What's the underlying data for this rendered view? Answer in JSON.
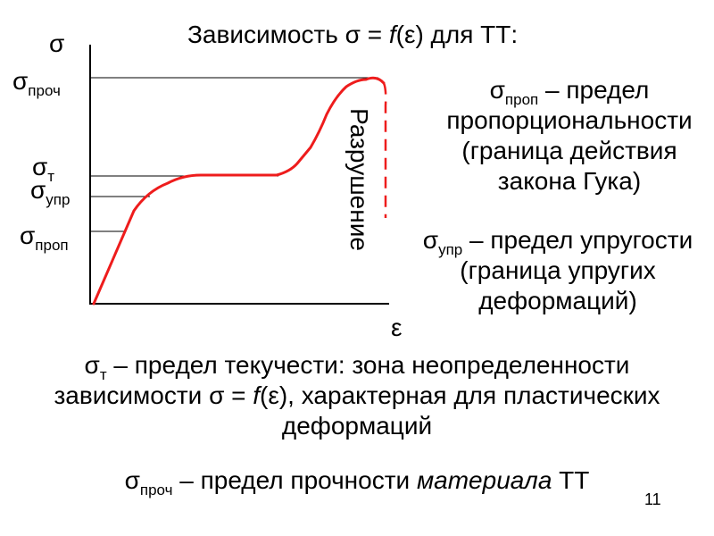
{
  "slide": {
    "title": {
      "pre": "Зависимость σ = ",
      "f": "f",
      "post": "(ε) для ТТ:"
    },
    "page_number": "11"
  },
  "diagram": {
    "y_axis": "σ",
    "x_axis": "ε",
    "levels": {
      "proch": {
        "sym": "σ",
        "sub": "проч"
      },
      "t": {
        "sym": "σ",
        "sub": "т"
      },
      "upr": {
        "sym": "σ",
        "sub": "упр"
      },
      "prop": {
        "sym": "σ",
        "sub": "проп"
      }
    },
    "fracture_label": "Разрушение",
    "colors": {
      "curve": "#ee1c1c",
      "fracture": "#ee1c1c",
      "lines": "#000000"
    }
  },
  "definitions": {
    "prop": {
      "sym": "σ",
      "sub": "проп",
      "rest": " – предел",
      "lines": [
        "пропорциональности",
        "(граница действия",
        "закона Гука)"
      ]
    },
    "upr": {
      "sym": "σ",
      "sub": "упр",
      "rest": " – предел упругости",
      "lines": [
        "(граница упругих",
        "деформаций)"
      ]
    },
    "t": {
      "sym": "σ",
      "sub": "т",
      "rest": " – предел текучести: зона неопределенности",
      "line2_pre": "зависимости σ = ",
      "line2_f": "f",
      "line2_post": "(ε), характерная для пластических",
      "line3": "деформаций"
    },
    "proch": {
      "sym": "σ",
      "sub": "проч",
      "rest": " – предел прочности ",
      "italic": "материала",
      "tail": " ТТ"
    }
  }
}
